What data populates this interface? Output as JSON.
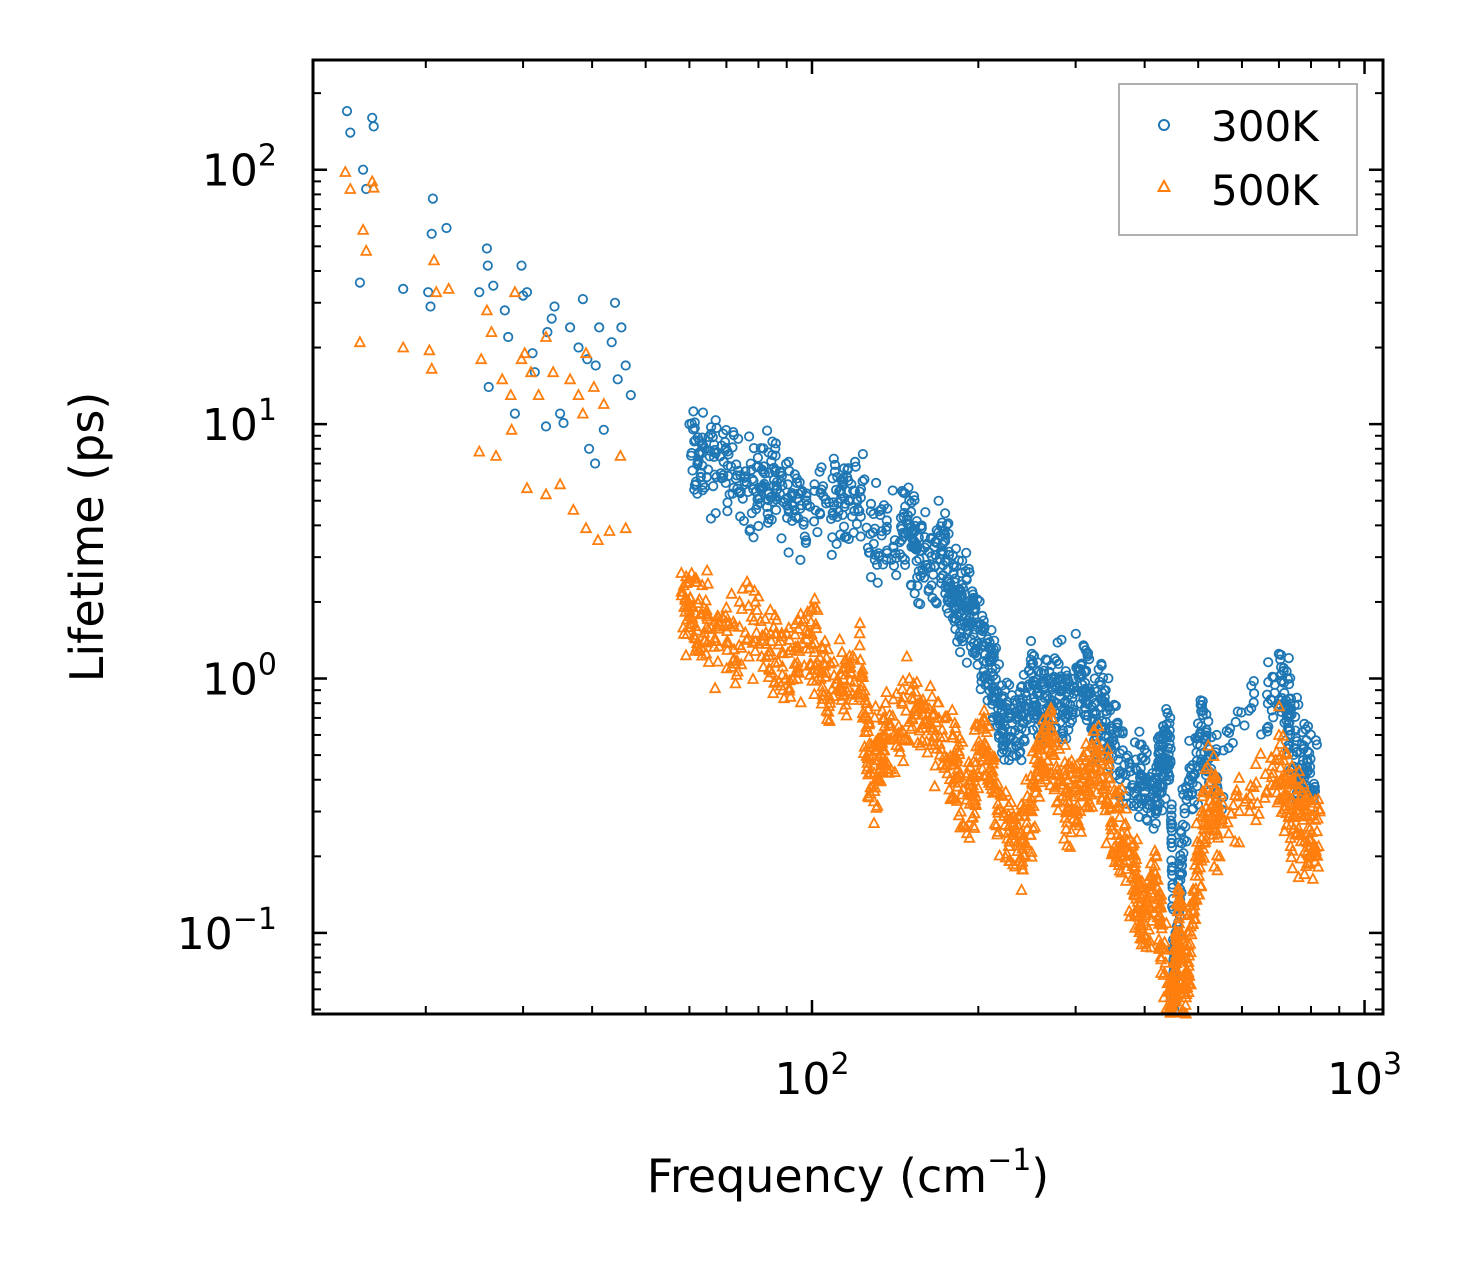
{
  "chart_data": {
    "type": "scatter",
    "title": "",
    "xlabel": "Frequency (cm",
    "xlabel_sup": "−1",
    "xlabel_tail": ")",
    "ylabel": "Lifetime (ps)",
    "xscale": "log",
    "yscale": "log",
    "xlim": [
      12.5,
      1080
    ],
    "ylim": [
      0.048,
      270
    ],
    "x_ticks": [
      {
        "base": "10",
        "exp": "2",
        "value": 100
      },
      {
        "base": "10",
        "exp": "3",
        "value": 1000
      }
    ],
    "y_ticks": [
      {
        "base": "10",
        "exp": "−1",
        "value": 0.1
      },
      {
        "base": "10",
        "exp": "0",
        "value": 1
      },
      {
        "base": "10",
        "exp": "1",
        "value": 10
      },
      {
        "base": "10",
        "exp": "2",
        "value": 100
      }
    ],
    "legend_position": "top-right",
    "series": [
      {
        "name": "300K",
        "color": "#1f77b4",
        "marker": "circle-open",
        "points": [
          [
            14.4,
            170
          ],
          [
            14.6,
            140
          ],
          [
            16.0,
            160
          ],
          [
            16.1,
            148
          ],
          [
            15.4,
            100
          ],
          [
            15.6,
            84
          ],
          [
            15.2,
            36
          ],
          [
            18.2,
            34
          ],
          [
            20.6,
            77
          ],
          [
            20.5,
            56
          ],
          [
            21.8,
            59
          ],
          [
            20.2,
            33
          ],
          [
            20.4,
            29
          ],
          [
            25.0,
            33
          ],
          [
            25.8,
            49
          ],
          [
            25.9,
            42
          ],
          [
            26.5,
            35
          ],
          [
            27.8,
            28
          ],
          [
            28.2,
            22
          ],
          [
            29.8,
            42
          ],
          [
            30.0,
            32
          ],
          [
            30.5,
            33
          ],
          [
            31.2,
            19
          ],
          [
            33.2,
            23
          ],
          [
            33.8,
            26
          ],
          [
            34.2,
            29
          ],
          [
            35.0,
            11
          ],
          [
            36.5,
            24
          ],
          [
            37.8,
            20
          ],
          [
            38.5,
            31
          ],
          [
            39.2,
            18
          ],
          [
            40.6,
            17
          ],
          [
            41.2,
            24
          ],
          [
            43.4,
            21
          ],
          [
            44.0,
            30
          ],
          [
            45.2,
            24
          ],
          [
            47.0,
            13
          ],
          [
            26.0,
            14
          ],
          [
            29.0,
            11
          ],
          [
            31.5,
            16
          ],
          [
            33.0,
            9.8
          ],
          [
            35.5,
            10.1
          ],
          [
            39.5,
            8.0
          ],
          [
            40.5,
            7.0
          ],
          [
            42.0,
            9.5
          ],
          [
            44.5,
            15
          ],
          [
            46.0,
            17
          ],
          [
            60.0,
            10
          ],
          [
            65.0,
            8.9
          ],
          [
            72.0,
            9.3
          ],
          [
            80.0,
            6.8
          ],
          [
            86.0,
            8.4
          ],
          [
            95.0,
            5.9
          ],
          [
            110.0,
            6.5
          ],
          [
            120.0,
            6.8
          ],
          [
            135.0,
            4.8
          ],
          [
            150.0,
            5.0
          ],
          [
            158.0,
            3.9
          ],
          [
            172.0,
            4.1
          ],
          [
            180.0,
            2.8
          ],
          [
            186.0,
            2.6
          ],
          [
            195.0,
            2.2
          ],
          [
            205.0,
            1.6
          ],
          [
            213.0,
            1.2
          ],
          [
            222.0,
            0.85
          ],
          [
            235.0,
            0.8
          ],
          [
            250.0,
            1.25
          ],
          [
            262.0,
            0.95
          ],
          [
            275.0,
            1.2
          ],
          [
            290.0,
            1.0
          ],
          [
            310.0,
            1.35
          ],
          [
            325.0,
            1.0
          ],
          [
            340.0,
            0.9
          ],
          [
            365.0,
            0.62
          ],
          [
            395.0,
            0.55
          ],
          [
            420.0,
            0.45
          ],
          [
            432.0,
            0.65
          ],
          [
            445.0,
            0.7
          ],
          [
            452.0,
            0.077
          ],
          [
            455.0,
            0.1
          ],
          [
            470.0,
            0.35
          ],
          [
            505.0,
            0.82
          ],
          [
            540.0,
            0.6
          ],
          [
            700.0,
            1.25
          ],
          [
            730.0,
            0.95
          ],
          [
            770.0,
            0.55
          ],
          [
            820.0,
            0.55
          ]
        ]
      },
      {
        "name": "500K",
        "color": "#ff7f0e",
        "marker": "triangle-open",
        "points": [
          [
            14.3,
            98
          ],
          [
            14.6,
            84
          ],
          [
            16.0,
            90
          ],
          [
            16.1,
            85
          ],
          [
            15.4,
            58
          ],
          [
            15.6,
            48
          ],
          [
            15.2,
            21
          ],
          [
            18.2,
            20
          ],
          [
            20.3,
            19.5
          ],
          [
            20.5,
            16.5
          ],
          [
            20.7,
            44
          ],
          [
            20.9,
            33
          ],
          [
            22.0,
            34
          ],
          [
            25.2,
            18
          ],
          [
            25.8,
            28
          ],
          [
            26.3,
            23
          ],
          [
            27.5,
            15
          ],
          [
            28.5,
            13
          ],
          [
            29.0,
            33
          ],
          [
            29.8,
            18
          ],
          [
            30.2,
            19
          ],
          [
            31.0,
            16
          ],
          [
            32.0,
            13
          ],
          [
            33.0,
            22
          ],
          [
            34.0,
            16
          ],
          [
            35.0,
            5.8
          ],
          [
            36.5,
            15
          ],
          [
            37.8,
            13
          ],
          [
            38.5,
            11
          ],
          [
            39.0,
            19
          ],
          [
            40.3,
            14
          ],
          [
            42.0,
            12
          ],
          [
            45.0,
            7.5
          ],
          [
            25.0,
            7.8
          ],
          [
            26.8,
            7.5
          ],
          [
            28.6,
            9.5
          ],
          [
            30.5,
            5.6
          ],
          [
            33.0,
            5.3
          ],
          [
            37.0,
            4.6
          ],
          [
            39.0,
            3.9
          ],
          [
            41.0,
            3.5
          ],
          [
            43.0,
            3.8
          ],
          [
            46.0,
            3.9
          ],
          [
            58.0,
            2.6
          ],
          [
            62.0,
            2.4
          ],
          [
            70.0,
            1.9
          ],
          [
            80.0,
            2.1
          ],
          [
            90.0,
            1.5
          ],
          [
            100.0,
            1.9
          ],
          [
            108.0,
            1.15
          ],
          [
            122.0,
            1.35
          ],
          [
            128.0,
            0.55
          ],
          [
            135.0,
            0.7
          ],
          [
            150.0,
            1.0
          ],
          [
            165.0,
            0.85
          ],
          [
            180.0,
            0.6
          ],
          [
            193.0,
            0.45
          ],
          [
            205.0,
            0.75
          ],
          [
            220.0,
            0.35
          ],
          [
            240.0,
            0.3
          ],
          [
            255.0,
            0.55
          ],
          [
            270.0,
            0.75
          ],
          [
            290.0,
            0.4
          ],
          [
            310.0,
            0.5
          ],
          [
            330.0,
            0.65
          ],
          [
            355.0,
            0.35
          ],
          [
            380.0,
            0.22
          ],
          [
            395.0,
            0.15
          ],
          [
            420.0,
            0.2
          ],
          [
            445.0,
            0.06
          ],
          [
            452.0,
            0.071
          ],
          [
            460.0,
            0.15
          ],
          [
            475.0,
            0.085
          ],
          [
            495.0,
            0.2
          ],
          [
            520.0,
            0.45
          ],
          [
            550.0,
            0.35
          ],
          [
            700.0,
            0.6
          ],
          [
            740.0,
            0.4
          ],
          [
            780.0,
            0.33
          ],
          [
            830.0,
            0.3
          ]
        ]
      }
    ]
  }
}
